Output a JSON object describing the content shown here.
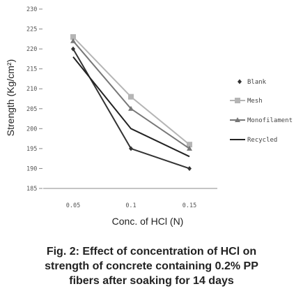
{
  "chart_data": {
    "type": "line",
    "title": "",
    "xlabel": "Conc. of HCl (N)",
    "ylabel": "Strength (Kg/cm²)",
    "categories": [
      "0.05",
      "0.1",
      "0.15"
    ],
    "y_ticks": [
      "185",
      "190",
      "195",
      "200",
      "205",
      "210",
      "215",
      "220",
      "225",
      "230"
    ],
    "ylim": [
      185,
      230
    ],
    "grid": false,
    "legend_position": "right",
    "series": [
      {
        "name": "Blank",
        "values": [
          220,
          195,
          190
        ],
        "color": "#333333",
        "marker": "diamond"
      },
      {
        "name": "Mesh",
        "values": [
          223,
          208,
          196
        ],
        "color": "#b5b5b5",
        "marker": "square"
      },
      {
        "name": "Monofilament",
        "values": [
          222,
          205,
          195
        ],
        "color": "#777777",
        "marker": "triangle"
      },
      {
        "name": "Recycled",
        "values": [
          218,
          200,
          193
        ],
        "color": "#222222",
        "marker": "none"
      }
    ]
  },
  "caption": {
    "line1": "Fig. 2: Effect of concentration of HCl on",
    "line2": "strength of concrete containing 0.2% PP",
    "line3": "fibers after soaking for 14 days"
  }
}
